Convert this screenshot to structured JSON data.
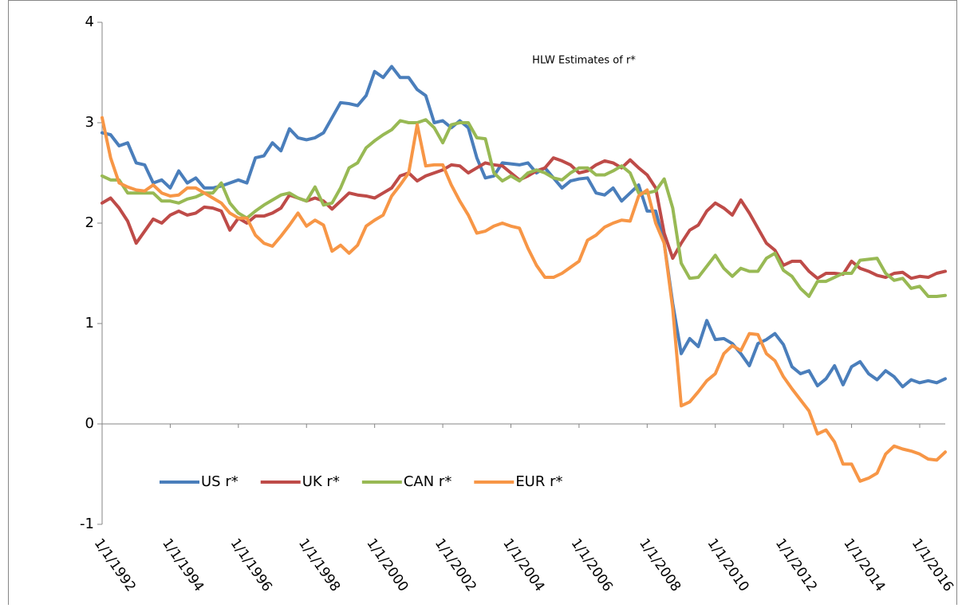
{
  "chart_data": {
    "type": "line",
    "title": "HLW Estimates of r*",
    "categories": [
      "1/1/1992",
      null,
      null,
      null,
      null,
      null,
      null,
      null,
      "1/1/1994",
      null,
      null,
      null,
      null,
      null,
      null,
      null,
      "1/1/1996",
      null,
      null,
      null,
      null,
      null,
      null,
      null,
      "1/1/1998",
      null,
      null,
      null,
      null,
      null,
      null,
      null,
      "1/1/2000",
      null,
      null,
      null,
      null,
      null,
      null,
      null,
      "1/1/2002",
      null,
      null,
      null,
      null,
      null,
      null,
      null,
      "1/1/2004",
      null,
      null,
      null,
      null,
      null,
      null,
      null,
      "1/1/2006",
      null,
      null,
      null,
      null,
      null,
      null,
      null,
      "1/1/2008",
      null,
      null,
      null,
      null,
      null,
      null,
      null,
      "1/1/2010",
      null,
      null,
      null,
      null,
      null,
      null,
      null,
      "1/1/2012",
      null,
      null,
      null,
      null,
      null,
      null,
      null,
      "1/1/2014",
      null,
      null,
      null,
      null,
      null,
      null,
      null,
      "1/1/2016",
      null,
      null,
      null
    ],
    "series": [
      {
        "name": "US r*",
        "color": "#4a7ebb",
        "values": [
          2.9,
          2.88,
          2.77,
          2.8,
          2.6,
          2.58,
          2.4,
          2.43,
          2.35,
          2.52,
          2.4,
          2.45,
          2.35,
          2.35,
          2.37,
          2.4,
          2.43,
          2.4,
          2.65,
          2.67,
          2.8,
          2.72,
          2.94,
          2.85,
          2.83,
          2.85,
          2.9,
          3.05,
          3.2,
          3.19,
          3.17,
          3.27,
          3.51,
          3.45,
          3.56,
          3.45,
          3.45,
          3.33,
          3.27,
          3.0,
          3.02,
          2.95,
          3.02,
          2.95,
          2.65,
          2.45,
          2.47,
          2.6,
          2.59,
          2.58,
          2.6,
          2.5,
          2.55,
          2.45,
          2.35,
          2.42,
          2.44,
          2.45,
          2.3,
          2.28,
          2.35,
          2.22,
          2.3,
          2.38,
          2.12,
          2.12,
          1.8,
          1.2,
          0.7,
          0.85,
          0.77,
          1.03,
          0.84,
          0.85,
          0.8,
          0.7,
          0.58,
          0.8,
          0.84,
          0.9,
          0.79,
          0.57,
          0.5,
          0.53,
          0.38,
          0.45,
          0.58,
          0.39,
          0.57,
          0.62,
          0.5,
          0.44,
          0.53,
          0.47,
          0.37,
          0.44,
          0.41,
          0.43,
          0.41,
          0.45
        ]
      },
      {
        "name": "UK r*",
        "color": "#be4b48",
        "values": [
          2.2,
          2.25,
          2.15,
          2.02,
          1.8,
          1.92,
          2.04,
          2.0,
          2.08,
          2.12,
          2.08,
          2.1,
          2.16,
          2.15,
          2.12,
          1.93,
          2.05,
          2.0,
          2.07,
          2.07,
          2.1,
          2.15,
          2.28,
          2.25,
          2.22,
          2.25,
          2.22,
          2.14,
          2.22,
          2.3,
          2.28,
          2.27,
          2.25,
          2.3,
          2.35,
          2.47,
          2.5,
          2.42,
          2.47,
          2.5,
          2.53,
          2.58,
          2.57,
          2.5,
          2.55,
          2.6,
          2.58,
          2.57,
          2.5,
          2.43,
          2.47,
          2.52,
          2.55,
          2.65,
          2.62,
          2.58,
          2.5,
          2.52,
          2.58,
          2.62,
          2.6,
          2.55,
          2.63,
          2.55,
          2.48,
          2.35,
          1.9,
          1.65,
          1.8,
          1.93,
          1.98,
          2.12,
          2.2,
          2.15,
          2.08,
          2.23,
          2.1,
          1.95,
          1.8,
          1.73,
          1.58,
          1.62,
          1.62,
          1.52,
          1.45,
          1.5,
          1.5,
          1.49,
          1.62,
          1.55,
          1.52,
          1.48,
          1.46,
          1.5,
          1.51,
          1.45,
          1.47,
          1.46,
          1.5,
          1.52
        ]
      },
      {
        "name": "CAN r*",
        "color": "#98b954",
        "values": [
          2.47,
          2.43,
          2.43,
          2.3,
          2.3,
          2.3,
          2.3,
          2.22,
          2.22,
          2.2,
          2.24,
          2.26,
          2.3,
          2.3,
          2.4,
          2.2,
          2.1,
          2.05,
          2.12,
          2.18,
          2.23,
          2.28,
          2.3,
          2.25,
          2.22,
          2.36,
          2.18,
          2.2,
          2.35,
          2.55,
          2.6,
          2.75,
          2.82,
          2.88,
          2.93,
          3.02,
          3.0,
          3.0,
          3.03,
          2.95,
          2.8,
          2.98,
          3.0,
          3.0,
          2.85,
          2.84,
          2.5,
          2.42,
          2.47,
          2.42,
          2.5,
          2.53,
          2.5,
          2.45,
          2.43,
          2.5,
          2.55,
          2.55,
          2.48,
          2.48,
          2.52,
          2.57,
          2.5,
          2.3,
          2.3,
          2.32,
          2.44,
          2.15,
          1.6,
          1.45,
          1.46,
          1.57,
          1.68,
          1.55,
          1.47,
          1.55,
          1.52,
          1.52,
          1.65,
          1.7,
          1.53,
          1.47,
          1.35,
          1.27,
          1.42,
          1.42,
          1.46,
          1.5,
          1.5,
          1.63,
          1.64,
          1.65,
          1.5,
          1.43,
          1.45,
          1.35,
          1.37,
          1.27,
          1.27,
          1.28
        ]
      },
      {
        "name": "EUR r*",
        "color": "#f79646",
        "values": [
          3.05,
          2.65,
          2.4,
          2.36,
          2.33,
          2.32,
          2.38,
          2.3,
          2.27,
          2.28,
          2.35,
          2.35,
          2.3,
          2.25,
          2.2,
          2.1,
          2.05,
          2.05,
          1.88,
          1.8,
          1.77,
          1.87,
          1.98,
          2.1,
          1.97,
          2.03,
          1.98,
          1.72,
          1.78,
          1.7,
          1.78,
          1.97,
          2.03,
          2.08,
          2.27,
          2.38,
          2.5,
          2.98,
          2.57,
          2.58,
          2.58,
          2.38,
          2.22,
          2.08,
          1.9,
          1.92,
          1.97,
          2.0,
          1.97,
          1.95,
          1.75,
          1.58,
          1.46,
          1.46,
          1.5,
          1.56,
          1.62,
          1.83,
          1.88,
          1.96,
          2.0,
          2.03,
          2.02,
          2.27,
          2.33,
          2.0,
          1.8,
          1.15,
          0.18,
          0.22,
          0.32,
          0.43,
          0.5,
          0.7,
          0.78,
          0.73,
          0.9,
          0.89,
          0.7,
          0.63,
          0.47,
          0.35,
          0.24,
          0.13,
          -0.1,
          -0.06,
          -0.18,
          -0.4,
          -0.4,
          -0.57,
          -0.54,
          -0.49,
          -0.3,
          -0.22,
          -0.25,
          -0.27,
          -0.3,
          -0.35,
          -0.36,
          -0.28
        ]
      }
    ],
    "ylim": [
      -1,
      4
    ],
    "yticks": [
      -1,
      0,
      1,
      2,
      3,
      4
    ],
    "grid": false,
    "legend": "bottom-left"
  }
}
